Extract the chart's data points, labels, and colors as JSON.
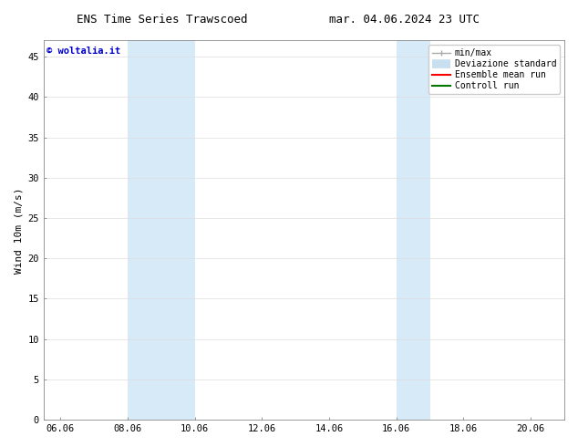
{
  "title_left": "ENS Time Series Trawscoed",
  "title_right": "mar. 04.06.2024 23 UTC",
  "ylabel": "Wind 10m (m/s)",
  "watermark": "© woltalia.it",
  "xlim_min": 5.5,
  "xlim_max": 21.0,
  "ylim_min": 0,
  "ylim_max": 47,
  "xtick_labels": [
    "06.06",
    "08.06",
    "10.06",
    "12.06",
    "14.06",
    "16.06",
    "18.06",
    "20.06"
  ],
  "xtick_positions": [
    6,
    8,
    10,
    12,
    14,
    16,
    18,
    20
  ],
  "ytick_positions": [
    0,
    5,
    10,
    15,
    20,
    25,
    30,
    35,
    40,
    45
  ],
  "shaded_bands": [
    {
      "x_start": 8.0,
      "x_end": 10.0
    },
    {
      "x_start": 16.0,
      "x_end": 17.0
    }
  ],
  "band_color": "#d6eaf8",
  "background_color": "#ffffff",
  "plot_bg_color": "#ffffff",
  "legend_labels": [
    "min/max",
    "Deviazione standard",
    "Ensemble mean run",
    "Controll run"
  ],
  "legend_colors": [
    "#aaaaaa",
    "#c8dff0",
    "#ff0000",
    "#007700"
  ],
  "title_fontsize": 9,
  "axis_label_fontsize": 8,
  "tick_fontsize": 7.5,
  "watermark_color": "#0000cc",
  "watermark_fontsize": 7.5,
  "legend_fontsize": 7,
  "grid_color": "#dddddd",
  "spine_color": "#888888"
}
